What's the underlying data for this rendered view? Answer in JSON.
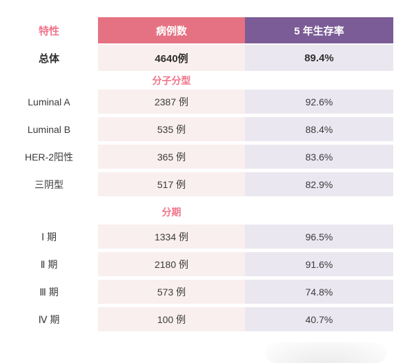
{
  "table": {
    "header": {
      "characteristic": "特性",
      "cases": "病例数",
      "survival": "5 年生存率"
    },
    "overall": {
      "label": "总体",
      "cases": "4640例",
      "survival": "89.4%"
    },
    "sections": [
      {
        "title": "分子分型",
        "rows": [
          {
            "label": "Luminal A",
            "cases": "2387 例",
            "survival": "92.6%"
          },
          {
            "label": "Luminal B",
            "cases": "535 例",
            "survival": "88.4%"
          },
          {
            "label": "HER-2阳性",
            "cases": "365 例",
            "survival": "83.6%"
          },
          {
            "label": "三阴型",
            "cases": "517 例",
            "survival": "82.9%"
          }
        ]
      },
      {
        "title": "分期",
        "rows": [
          {
            "label": "Ⅰ 期",
            "cases": "1334 例",
            "survival": "96.5%"
          },
          {
            "label": "Ⅱ 期",
            "cases": "2180 例",
            "survival": "91.6%"
          },
          {
            "label": "Ⅲ 期",
            "cases": "573 例",
            "survival": "74.8%"
          },
          {
            "label": "Ⅳ 期",
            "cases": "100 例",
            "survival": "40.7%"
          }
        ]
      }
    ]
  },
  "colors": {
    "header_pink": "#e57282",
    "header_purple": "#7b5c96",
    "cell_pink": "#f9efee",
    "cell_lavender": "#ebe7f0",
    "accent_pink_text": "#f0758a",
    "body_text": "#3a3a3a"
  },
  "chart_data": {
    "type": "table",
    "title": "",
    "columns": [
      "特性",
      "病例数",
      "5 年生存率"
    ],
    "groups": [
      {
        "group": "总体",
        "rows": [
          {
            "label": "总体",
            "cases": 4640,
            "survival_pct": 89.4
          }
        ]
      },
      {
        "group": "分子分型",
        "rows": [
          {
            "label": "Luminal A",
            "cases": 2387,
            "survival_pct": 92.6
          },
          {
            "label": "Luminal B",
            "cases": 535,
            "survival_pct": 88.4
          },
          {
            "label": "HER-2阳性",
            "cases": 365,
            "survival_pct": 83.6
          },
          {
            "label": "三阴型",
            "cases": 517,
            "survival_pct": 82.9
          }
        ]
      },
      {
        "group": "分期",
        "rows": [
          {
            "label": "Ⅰ 期",
            "cases": 1334,
            "survival_pct": 96.5
          },
          {
            "label": "Ⅱ 期",
            "cases": 2180,
            "survival_pct": 91.6
          },
          {
            "label": "Ⅲ 期",
            "cases": 573,
            "survival_pct": 74.8
          },
          {
            "label": "Ⅳ 期",
            "cases": 100,
            "survival_pct": 40.7
          }
        ]
      }
    ]
  }
}
